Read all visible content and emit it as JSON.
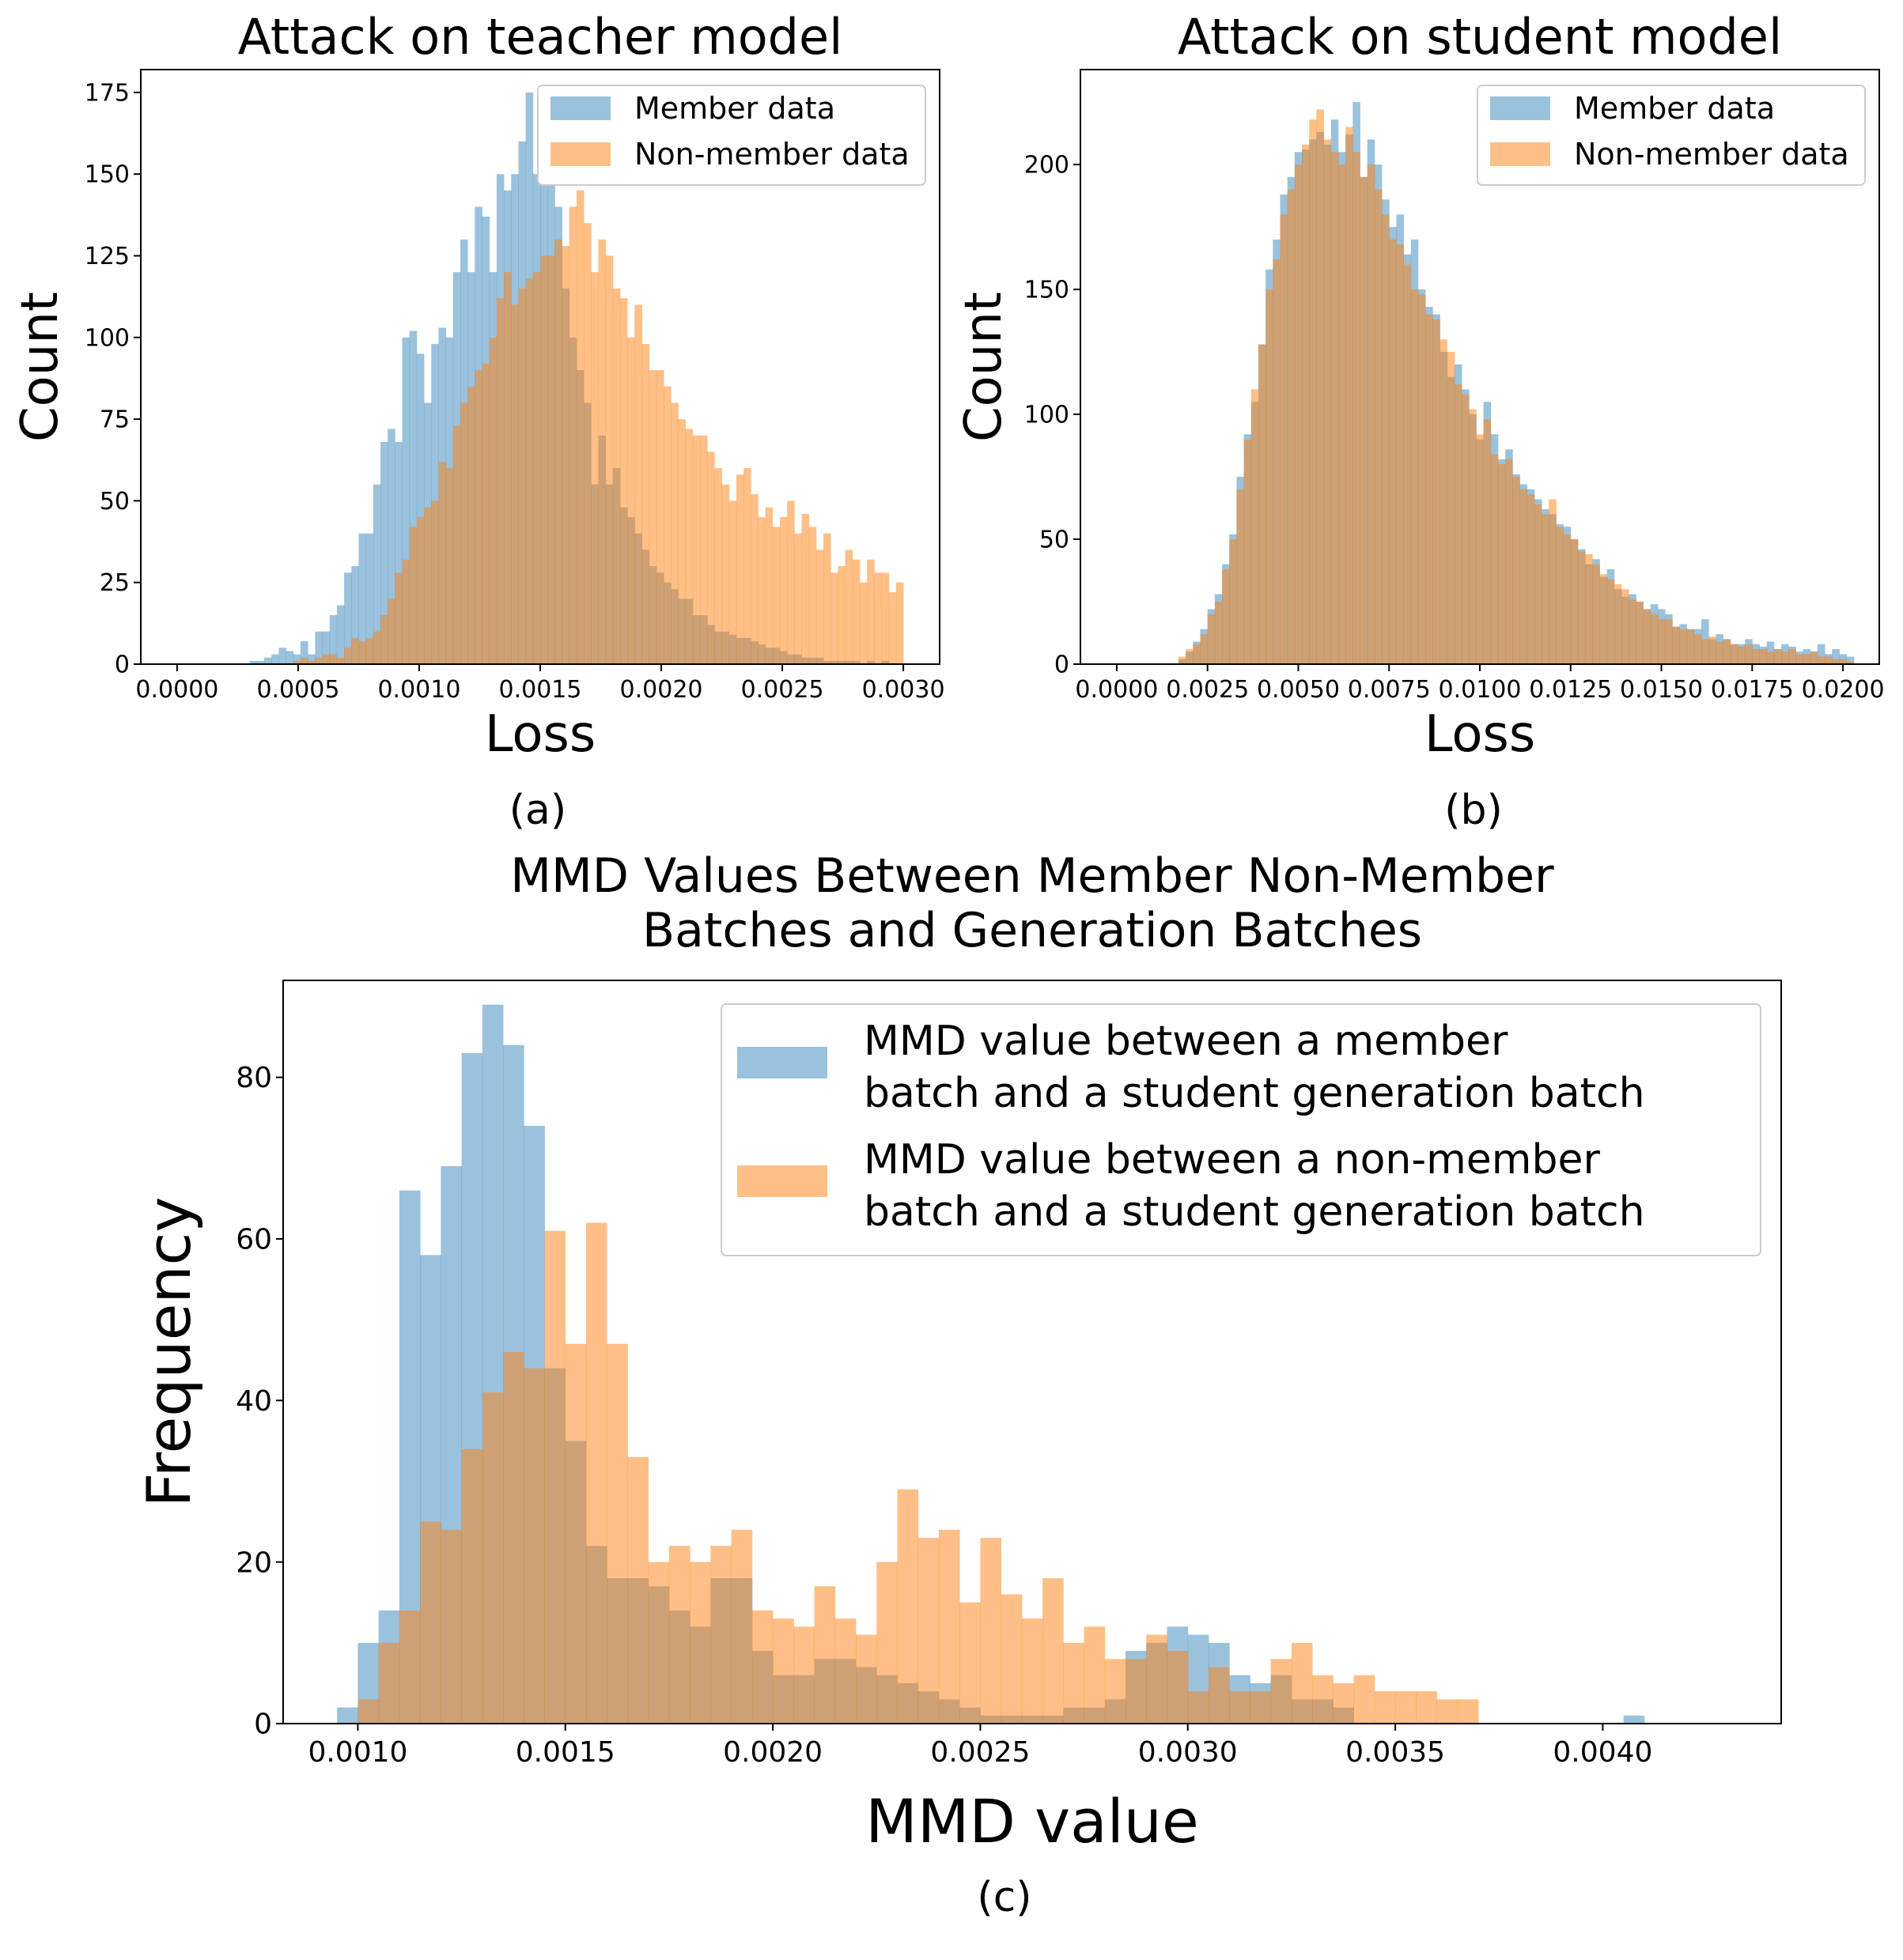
{
  "colors": {
    "member": "#1f77b4",
    "nonmember": "#ff7f0e",
    "axis": "#000000",
    "legend_border": "#cccccc"
  },
  "chart_data": [
    {
      "id": "a",
      "type": "histogram",
      "caption": "(a)",
      "title": "Attack on teacher model",
      "xlabel": "Loss",
      "ylabel": "Count",
      "xlim": [
        -0.00015,
        0.00315
      ],
      "ylim": [
        0,
        182
      ],
      "xticks": [
        0.0,
        0.0005,
        0.001,
        0.0015,
        0.002,
        0.0025,
        0.003
      ],
      "xtick_labels": [
        "0.0000",
        "0.0005",
        "0.0010",
        "0.0015",
        "0.0020",
        "0.0025",
        "0.0030"
      ],
      "yticks": [
        0,
        25,
        50,
        75,
        100,
        125,
        150,
        175
      ],
      "ytick_labels": [
        "0",
        "25",
        "50",
        "75",
        "100",
        "125",
        "150",
        "175"
      ],
      "legend_position": "upper-right",
      "series": [
        {
          "name": "Member data",
          "bin_start": 0.0003,
          "bin_width": 3e-05,
          "counts": [
            1,
            1,
            2,
            3,
            5,
            4,
            3,
            7,
            3,
            10,
            10,
            15,
            18,
            28,
            30,
            40,
            40,
            55,
            68,
            72,
            68,
            100,
            102,
            95,
            80,
            98,
            103,
            100,
            120,
            130,
            120,
            140,
            137,
            120,
            150,
            145,
            150,
            160,
            175,
            150,
            160,
            155,
            140,
            115,
            100,
            90,
            80,
            55,
            70,
            55,
            60,
            48,
            45,
            40,
            35,
            30,
            28,
            25,
            23,
            20,
            20,
            15,
            15,
            12,
            10,
            10,
            9,
            8,
            8,
            7,
            6,
            5,
            5,
            4,
            3,
            3,
            2,
            2,
            2,
            1,
            1,
            1,
            1,
            1,
            0,
            1,
            0,
            1,
            0,
            0
          ]
        },
        {
          "name": "Non-member data",
          "bin_start": 0.0003,
          "bin_width": 3e-05,
          "counts": [
            0,
            0,
            0,
            0,
            0,
            0,
            1,
            2,
            1,
            2,
            3,
            3,
            2,
            5,
            8,
            7,
            8,
            10,
            15,
            20,
            28,
            32,
            42,
            45,
            48,
            50,
            62,
            60,
            73,
            80,
            85,
            90,
            92,
            100,
            112,
            120,
            110,
            115,
            118,
            120,
            125,
            125,
            130,
            128,
            140,
            145,
            135,
            120,
            130,
            125,
            115,
            112,
            100,
            110,
            98,
            90,
            90,
            85,
            80,
            75,
            72,
            70,
            70,
            65,
            60,
            55,
            50,
            58,
            60,
            52,
            45,
            48,
            42,
            45,
            50,
            40,
            46,
            42,
            35,
            40,
            28,
            30,
            35,
            32,
            25,
            32,
            28,
            28,
            22,
            25
          ]
        }
      ]
    },
    {
      "id": "b",
      "type": "histogram",
      "caption": "(b)",
      "title": "Attack on student model",
      "xlabel": "Loss",
      "ylabel": "Count",
      "xlim": [
        -0.001,
        0.021
      ],
      "ylim": [
        0,
        238
      ],
      "xticks": [
        0.0,
        0.0025,
        0.005,
        0.0075,
        0.01,
        0.0125,
        0.015,
        0.0175,
        0.02
      ],
      "xtick_labels": [
        "0.0000",
        "0.0025",
        "0.0050",
        "0.0075",
        "0.0100",
        "0.0125",
        "0.0150",
        "0.0175",
        "0.0200"
      ],
      "yticks": [
        0,
        50,
        100,
        150,
        200
      ],
      "ytick_labels": [
        "0",
        "50",
        "100",
        "150",
        "200"
      ],
      "legend_position": "upper-right",
      "series": [
        {
          "name": "Member data",
          "bin_start": 0.0017,
          "bin_width": 0.0002,
          "counts": [
            2,
            5,
            9,
            14,
            22,
            28,
            40,
            52,
            75,
            92,
            105,
            128,
            158,
            170,
            188,
            195,
            205,
            206,
            210,
            213,
            208,
            218,
            205,
            212,
            225,
            195,
            210,
            200,
            186,
            175,
            180,
            164,
            170,
            150,
            143,
            140,
            125,
            115,
            120,
            110,
            100,
            90,
            105,
            92,
            82,
            86,
            76,
            72,
            70,
            66,
            62,
            60,
            56,
            55,
            50,
            46,
            40,
            42,
            35,
            38,
            30,
            27,
            28,
            25,
            22,
            24,
            22,
            20,
            15,
            16,
            14,
            14,
            18,
            10,
            12,
            10,
            8,
            8,
            10,
            8,
            7,
            9,
            6,
            8,
            7,
            5,
            6,
            5,
            8,
            4,
            6,
            4,
            3,
            0,
            0,
            0,
            0,
            0,
            0,
            0
          ]
        },
        {
          "name": "Non-member data",
          "bin_start": 0.0017,
          "bin_width": 0.0002,
          "counts": [
            3,
            6,
            8,
            12,
            20,
            25,
            38,
            50,
            70,
            90,
            110,
            128,
            150,
            162,
            180,
            190,
            200,
            208,
            218,
            222,
            210,
            205,
            200,
            215,
            205,
            195,
            200,
            190,
            180,
            170,
            168,
            160,
            150,
            148,
            140,
            138,
            130,
            125,
            112,
            108,
            102,
            92,
            98,
            84,
            80,
            82,
            75,
            70,
            68,
            64,
            60,
            66,
            55,
            52,
            50,
            45,
            44,
            40,
            36,
            34,
            32,
            30,
            26,
            25,
            22,
            20,
            18,
            18,
            15,
            14,
            14,
            12,
            10,
            11,
            9,
            10,
            8,
            7,
            8,
            6,
            6,
            5,
            6,
            5,
            6,
            4,
            4,
            5,
            3,
            3,
            2,
            2,
            1,
            0,
            0,
            0,
            0,
            0,
            0,
            0
          ]
        }
      ]
    },
    {
      "id": "c",
      "type": "histogram",
      "caption": "(c)",
      "title": "MMD Values Between Member Non-Member\nBatches and Generation Batches",
      "xlabel": "MMD value",
      "ylabel": "Frequency",
      "xlim": [
        0.00082,
        0.00443
      ],
      "ylim": [
        0,
        92
      ],
      "xticks": [
        0.001,
        0.0015,
        0.002,
        0.0025,
        0.003,
        0.0035,
        0.004
      ],
      "xtick_labels": [
        "0.0010",
        "0.0015",
        "0.0020",
        "0.0025",
        "0.0030",
        "0.0035",
        "0.0040"
      ],
      "yticks": [
        0,
        20,
        40,
        60,
        80
      ],
      "ytick_labels": [
        "0",
        "20",
        "40",
        "60",
        "80"
      ],
      "legend_position": "upper-right",
      "series": [
        {
          "name": "MMD value between a member\n batch and  a student generation batch",
          "bin_start": 0.00095,
          "bin_width": 5e-05,
          "counts": [
            2,
            10,
            14,
            66,
            58,
            69,
            83,
            89,
            84,
            74,
            44,
            35,
            22,
            18,
            18,
            17,
            14,
            12,
            18,
            18,
            9,
            6,
            6,
            8,
            8,
            7,
            6,
            5,
            4,
            3,
            2,
            1,
            1,
            1,
            1,
            2,
            2,
            3,
            9,
            10,
            12,
            11,
            10,
            6,
            5,
            6,
            3,
            3,
            2,
            0,
            0,
            0,
            0,
            0,
            0,
            0,
            0,
            0,
            0,
            0,
            0,
            0,
            1
          ]
        },
        {
          "name": "MMD value between a non-member\n batch and  a student generation batch",
          "bin_start": 0.00095,
          "bin_width": 5e-05,
          "counts": [
            0,
            3,
            10,
            14,
            25,
            24,
            34,
            41,
            46,
            44,
            61,
            47,
            62,
            47,
            33,
            20,
            22,
            20,
            22,
            24,
            14,
            13,
            12,
            17,
            13,
            11,
            20,
            29,
            23,
            24,
            15,
            23,
            16,
            13,
            18,
            10,
            12,
            8,
            8,
            11,
            9,
            4,
            7,
            4,
            4,
            8,
            10,
            6,
            5,
            6,
            4,
            4,
            4,
            3,
            3,
            0,
            0,
            0,
            0,
            0,
            0,
            0,
            0
          ]
        }
      ]
    }
  ]
}
